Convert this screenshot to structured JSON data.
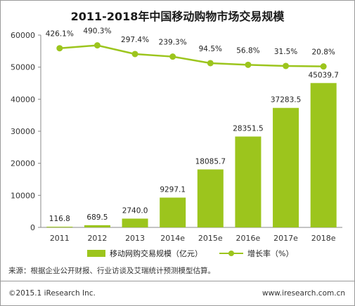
{
  "title": "2011-2018年中国移动购物市场交易规模",
  "chart_data": {
    "type": "bar",
    "categories": [
      "2011",
      "2012",
      "2013",
      "2014e",
      "2015e",
      "2016e",
      "2017e",
      "2018e"
    ],
    "series": [
      {
        "name": "移动网购交易规模（亿元）",
        "type": "bar",
        "values": [
          116.8,
          689.5,
          2740.0,
          9297.1,
          18085.7,
          28351.5,
          37283.5,
          45039.7
        ],
        "labels": [
          "116.8",
          "689.5",
          "2740.0",
          "9297.1",
          "18085.7",
          "28351.5",
          "37283.5",
          "45039.7"
        ],
        "color": "#9cc51d"
      },
      {
        "name": "增长率（%）",
        "type": "line",
        "values": [
          426.1,
          490.3,
          297.4,
          239.3,
          94.5,
          56.8,
          31.5,
          20.8
        ],
        "labels": [
          "426.1%",
          "490.3%",
          "297.4%",
          "239.3%",
          "94.5%",
          "56.8%",
          "31.5%",
          "20.8%"
        ],
        "color": "#9cc51d"
      }
    ],
    "y_ticks": [
      "0",
      "10000",
      "20000",
      "30000",
      "40000",
      "50000",
      "60000"
    ],
    "ylim": [
      0,
      60000
    ],
    "grid": false,
    "legend_position": "bottom"
  },
  "footer": {
    "source": "来源：根据企业公开财报、行业访谈及艾瑞统计预测模型估算。",
    "copyright": "©2015.1 iResearch Inc.",
    "website": "www.iresearch.com.cn"
  }
}
